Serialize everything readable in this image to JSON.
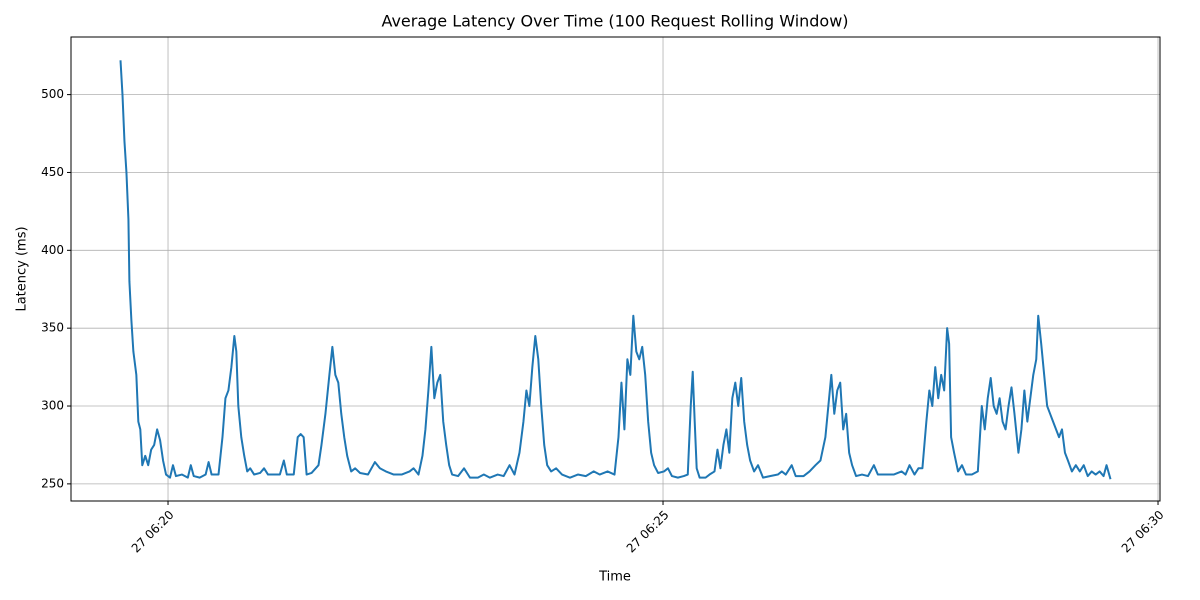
{
  "chart_data": {
    "type": "line",
    "title": "Average Latency Over Time (100 Request Rolling Window)",
    "x_label": "Time",
    "y_label": "Latency (ms)",
    "xlim": [
      19.02,
      30.02
    ],
    "ylim": [
      239,
      537
    ],
    "xticks": [
      {
        "value": 20,
        "label": "27 06:20"
      },
      {
        "value": 25,
        "label": "27 06:25"
      },
      {
        "value": 30,
        "label": "27 06:30"
      }
    ],
    "yticks": [
      250,
      300,
      350,
      400,
      450,
      500
    ],
    "grid": true,
    "x": [
      19.52,
      19.54,
      19.56,
      19.58,
      19.6,
      19.61,
      19.63,
      19.65,
      19.68,
      19.7,
      19.72,
      19.74,
      19.77,
      19.8,
      19.83,
      19.86,
      19.89,
      19.92,
      19.95,
      19.98,
      20.02,
      20.05,
      20.08,
      20.14,
      20.2,
      20.23,
      20.26,
      20.32,
      20.38,
      20.41,
      20.44,
      20.51,
      20.55,
      20.58,
      20.61,
      20.64,
      20.67,
      20.69,
      20.71,
      20.74,
      20.77,
      20.8,
      20.83,
      20.87,
      20.93,
      20.97,
      21.01,
      21.07,
      21.13,
      21.17,
      21.2,
      21.27,
      21.31,
      21.34,
      21.37,
      21.4,
      21.45,
      21.52,
      21.55,
      21.59,
      21.63,
      21.66,
      21.69,
      21.72,
      21.75,
      21.78,
      21.81,
      21.85,
      21.89,
      21.94,
      22.02,
      22.09,
      22.14,
      22.2,
      22.28,
      22.36,
      22.44,
      22.48,
      22.53,
      22.57,
      22.6,
      22.63,
      22.66,
      22.69,
      22.72,
      22.75,
      22.78,
      22.81,
      22.84,
      22.87,
      22.93,
      22.99,
      23.05,
      23.13,
      23.19,
      23.25,
      23.33,
      23.39,
      23.45,
      23.5,
      23.55,
      23.59,
      23.62,
      23.65,
      23.68,
      23.71,
      23.74,
      23.77,
      23.8,
      23.83,
      23.87,
      23.92,
      23.98,
      24.06,
      24.14,
      24.22,
      24.3,
      24.36,
      24.44,
      24.51,
      24.55,
      24.58,
      24.61,
      24.64,
      24.67,
      24.7,
      24.73,
      24.76,
      24.79,
      24.82,
      24.85,
      24.88,
      24.91,
      24.95,
      25.01,
      25.05,
      25.09,
      25.15,
      25.21,
      25.25,
      25.28,
      25.3,
      25.32,
      25.34,
      25.37,
      25.43,
      25.47,
      25.52,
      25.55,
      25.58,
      25.61,
      25.64,
      25.67,
      25.7,
      25.73,
      25.76,
      25.79,
      25.82,
      25.85,
      25.88,
      25.92,
      25.96,
      26.01,
      26.08,
      26.16,
      26.2,
      26.24,
      26.3,
      26.34,
      26.42,
      26.48,
      26.54,
      26.59,
      26.64,
      26.67,
      26.7,
      26.73,
      26.76,
      26.79,
      26.82,
      26.85,
      26.88,
      26.91,
      26.95,
      27.01,
      27.07,
      27.13,
      27.17,
      27.25,
      27.33,
      27.41,
      27.45,
      27.49,
      27.54,
      27.58,
      27.62,
      27.66,
      27.69,
      27.72,
      27.75,
      27.78,
      27.81,
      27.84,
      27.87,
      27.89,
      27.91,
      27.94,
      27.98,
      28.02,
      28.06,
      28.12,
      28.18,
      28.22,
      28.25,
      28.28,
      28.31,
      28.34,
      28.37,
      28.4,
      28.43,
      28.46,
      28.49,
      28.52,
      28.55,
      28.59,
      28.62,
      28.65,
      28.68,
      28.71,
      28.74,
      28.77,
      28.79,
      28.82,
      28.85,
      28.88,
      28.91,
      28.94,
      28.97,
      29.0,
      29.03,
      29.06,
      29.09,
      29.13,
      29.17,
      29.21,
      29.25,
      29.29,
      29.33,
      29.37,
      29.41,
      29.45,
      29.48,
      29.52
    ],
    "series": [
      {
        "color": "#1f77b4",
        "values": [
          522,
          500,
          470,
          450,
          420,
          380,
          355,
          335,
          320,
          290,
          285,
          262,
          268,
          262,
          272,
          275,
          285,
          278,
          265,
          256,
          254,
          262,
          255,
          256,
          254,
          262,
          255,
          254,
          256,
          264,
          256,
          256,
          280,
          305,
          310,
          325,
          345,
          335,
          300,
          280,
          268,
          258,
          260,
          256,
          257,
          260,
          256,
          256,
          256,
          265,
          256,
          256,
          280,
          282,
          280,
          256,
          257,
          262,
          275,
          295,
          320,
          338,
          320,
          315,
          295,
          280,
          268,
          258,
          260,
          257,
          256,
          264,
          260,
          258,
          256,
          256,
          258,
          260,
          256,
          268,
          285,
          310,
          338,
          305,
          315,
          320,
          290,
          275,
          262,
          256,
          255,
          260,
          254,
          254,
          256,
          254,
          256,
          255,
          262,
          256,
          270,
          290,
          310,
          300,
          325,
          345,
          330,
          300,
          275,
          262,
          258,
          260,
          256,
          254,
          256,
          255,
          258,
          256,
          258,
          256,
          280,
          315,
          285,
          330,
          320,
          358,
          335,
          330,
          338,
          320,
          290,
          270,
          262,
          257,
          258,
          260,
          255,
          254,
          255,
          256,
          300,
          322,
          290,
          260,
          254,
          254,
          256,
          258,
          272,
          260,
          275,
          285,
          270,
          305,
          315,
          300,
          318,
          290,
          275,
          265,
          258,
          262,
          254,
          255,
          256,
          258,
          256,
          262,
          255,
          255,
          258,
          262,
          265,
          280,
          300,
          320,
          295,
          310,
          315,
          285,
          295,
          270,
          262,
          255,
          256,
          255,
          262,
          256,
          256,
          256,
          258,
          256,
          262,
          256,
          260,
          260,
          290,
          310,
          300,
          325,
          305,
          320,
          310,
          350,
          340,
          280,
          270,
          258,
          262,
          256,
          256,
          258,
          300,
          285,
          305,
          318,
          300,
          295,
          305,
          290,
          285,
          300,
          312,
          295,
          270,
          285,
          310,
          290,
          305,
          320,
          330,
          358,
          340,
          320,
          300,
          295,
          290,
          285,
          280,
          285,
          270,
          265,
          258,
          262,
          258,
          262,
          255,
          258,
          256,
          258,
          255,
          262,
          253
        ]
      }
    ]
  }
}
